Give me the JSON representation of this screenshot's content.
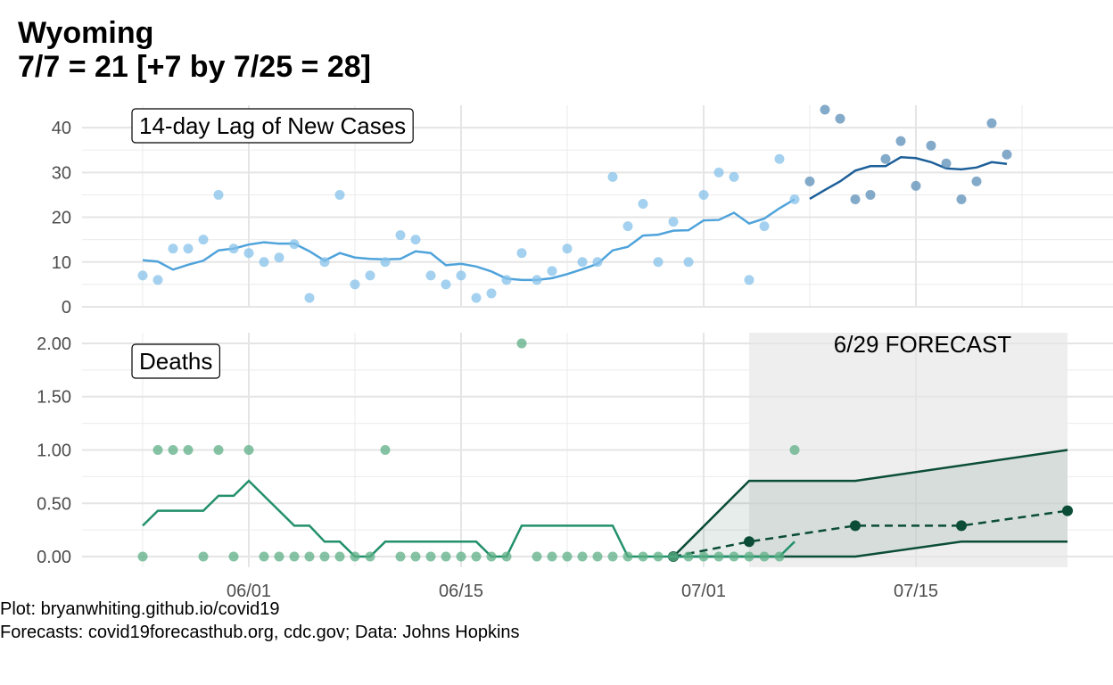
{
  "title_line1": "Wyoming",
  "title_line2": "7/7 = 21 [+7 by 7/25 = 28]",
  "caption_line1": "Plot: bryanwhiting.github.io/covid19",
  "caption_line2": "Forecasts: covid19forecasthub.org, cdc.gov; Data: Johns Hopkins",
  "colors": {
    "cases_point": "#85C1E9",
    "cases_point_recent": "#5B8DB8",
    "cases_line": "#4FA3DB",
    "cases_line_recent": "#1D5F99",
    "deaths_point": "#5CAF86",
    "deaths_line": "#22906A",
    "forecast": "#0B4D36",
    "forecast_band": "#D9D9D9",
    "grid": "#EBEBEB"
  },
  "chart_data": [
    {
      "type": "scatter",
      "panel": "cases",
      "label": "14-day Lag of New Cases",
      "xlim": [
        "2020-05-21",
        "2020-07-28"
      ],
      "ylim": [
        0,
        45
      ],
      "yticks": [
        0,
        10,
        20,
        30,
        40
      ],
      "xticks": [
        {
          "date": "2020-06-01",
          "label": "06/01"
        },
        {
          "date": "2020-06-15",
          "label": "06/15"
        },
        {
          "date": "2020-07-01",
          "label": "07/01"
        },
        {
          "date": "2020-07-15",
          "label": "07/15"
        }
      ],
      "grid": true,
      "recent_from": "2020-07-08",
      "points": [
        {
          "x": "2020-05-25",
          "y": 7
        },
        {
          "x": "2020-05-26",
          "y": 6
        },
        {
          "x": "2020-05-27",
          "y": 13
        },
        {
          "x": "2020-05-28",
          "y": 13
        },
        {
          "x": "2020-05-29",
          "y": 15
        },
        {
          "x": "2020-05-30",
          "y": 25
        },
        {
          "x": "2020-05-31",
          "y": 13
        },
        {
          "x": "2020-06-01",
          "y": 12
        },
        {
          "x": "2020-06-02",
          "y": 10
        },
        {
          "x": "2020-06-03",
          "y": 11
        },
        {
          "x": "2020-06-04",
          "y": 14
        },
        {
          "x": "2020-06-05",
          "y": 2
        },
        {
          "x": "2020-06-06",
          "y": 10
        },
        {
          "x": "2020-06-07",
          "y": 25
        },
        {
          "x": "2020-06-08",
          "y": 5
        },
        {
          "x": "2020-06-09",
          "y": 7
        },
        {
          "x": "2020-06-10",
          "y": 10
        },
        {
          "x": "2020-06-11",
          "y": 16
        },
        {
          "x": "2020-06-12",
          "y": 15
        },
        {
          "x": "2020-06-13",
          "y": 7
        },
        {
          "x": "2020-06-14",
          "y": 5
        },
        {
          "x": "2020-06-15",
          "y": 7
        },
        {
          "x": "2020-06-16",
          "y": 2
        },
        {
          "x": "2020-06-17",
          "y": 3
        },
        {
          "x": "2020-06-18",
          "y": 6
        },
        {
          "x": "2020-06-19",
          "y": 12
        },
        {
          "x": "2020-06-20",
          "y": 6
        },
        {
          "x": "2020-06-21",
          "y": 8
        },
        {
          "x": "2020-06-22",
          "y": 13
        },
        {
          "x": "2020-06-23",
          "y": 10
        },
        {
          "x": "2020-06-24",
          "y": 10
        },
        {
          "x": "2020-06-25",
          "y": 29
        },
        {
          "x": "2020-06-26",
          "y": 18
        },
        {
          "x": "2020-06-27",
          "y": 23
        },
        {
          "x": "2020-06-28",
          "y": 10
        },
        {
          "x": "2020-06-29",
          "y": 19
        },
        {
          "x": "2020-06-30",
          "y": 10
        },
        {
          "x": "2020-07-01",
          "y": 25
        },
        {
          "x": "2020-07-02",
          "y": 30
        },
        {
          "x": "2020-07-03",
          "y": 29
        },
        {
          "x": "2020-07-04",
          "y": 6
        },
        {
          "x": "2020-07-05",
          "y": 18
        },
        {
          "x": "2020-07-06",
          "y": 33
        },
        {
          "x": "2020-07-07",
          "y": 24
        },
        {
          "x": "2020-07-08",
          "y": 28
        },
        {
          "x": "2020-07-09",
          "y": 44
        },
        {
          "x": "2020-07-10",
          "y": 42
        },
        {
          "x": "2020-07-11",
          "y": 24
        },
        {
          "x": "2020-07-12",
          "y": 25
        },
        {
          "x": "2020-07-13",
          "y": 33
        },
        {
          "x": "2020-07-14",
          "y": 37
        },
        {
          "x": "2020-07-15",
          "y": 27
        },
        {
          "x": "2020-07-16",
          "y": 36
        },
        {
          "x": "2020-07-17",
          "y": 32
        },
        {
          "x": "2020-07-18",
          "y": 24
        },
        {
          "x": "2020-07-19",
          "y": 28
        },
        {
          "x": "2020-07-20",
          "y": 41
        },
        {
          "x": "2020-07-21",
          "y": 34
        }
      ],
      "rolling": [
        {
          "x": "2020-05-25",
          "y": 10.4
        },
        {
          "x": "2020-05-26",
          "y": 10.1
        },
        {
          "x": "2020-05-27",
          "y": 8.3
        },
        {
          "x": "2020-05-28",
          "y": 9.4
        },
        {
          "x": "2020-05-29",
          "y": 10.3
        },
        {
          "x": "2020-05-30",
          "y": 12.6
        },
        {
          "x": "2020-05-31",
          "y": 13.0
        },
        {
          "x": "2020-06-01",
          "y": 13.9
        },
        {
          "x": "2020-06-02",
          "y": 14.4
        },
        {
          "x": "2020-06-03",
          "y": 14.1
        },
        {
          "x": "2020-06-04",
          "y": 14.1
        },
        {
          "x": "2020-06-05",
          "y": 12.4
        },
        {
          "x": "2020-06-06",
          "y": 10.3
        },
        {
          "x": "2020-06-07",
          "y": 12.0
        },
        {
          "x": "2020-06-08",
          "y": 11.0
        },
        {
          "x": "2020-06-09",
          "y": 10.7
        },
        {
          "x": "2020-06-10",
          "y": 10.6
        },
        {
          "x": "2020-06-11",
          "y": 10.7
        },
        {
          "x": "2020-06-12",
          "y": 12.4
        },
        {
          "x": "2020-06-13",
          "y": 12.0
        },
        {
          "x": "2020-06-14",
          "y": 9.3
        },
        {
          "x": "2020-06-15",
          "y": 9.6
        },
        {
          "x": "2020-06-16",
          "y": 9.0
        },
        {
          "x": "2020-06-17",
          "y": 7.9
        },
        {
          "x": "2020-06-18",
          "y": 6.3
        },
        {
          "x": "2020-06-19",
          "y": 6.0
        },
        {
          "x": "2020-06-20",
          "y": 6.0
        },
        {
          "x": "2020-06-21",
          "y": 6.4
        },
        {
          "x": "2020-06-22",
          "y": 7.3
        },
        {
          "x": "2020-06-23",
          "y": 8.4
        },
        {
          "x": "2020-06-24",
          "y": 9.6
        },
        {
          "x": "2020-06-25",
          "y": 12.6
        },
        {
          "x": "2020-06-26",
          "y": 13.4
        },
        {
          "x": "2020-06-27",
          "y": 15.9
        },
        {
          "x": "2020-06-28",
          "y": 16.1
        },
        {
          "x": "2020-06-29",
          "y": 17.0
        },
        {
          "x": "2020-06-30",
          "y": 17.1
        },
        {
          "x": "2020-07-01",
          "y": 19.3
        },
        {
          "x": "2020-07-02",
          "y": 19.4
        },
        {
          "x": "2020-07-03",
          "y": 21.0
        },
        {
          "x": "2020-07-04",
          "y": 18.6
        },
        {
          "x": "2020-07-05",
          "y": 19.7
        },
        {
          "x": "2020-07-06",
          "y": 22.0
        },
        {
          "x": "2020-07-07",
          "y": 24.0
        },
        {
          "x": "2020-07-08",
          "y": 24.1
        },
        {
          "x": "2020-07-09",
          "y": 26.1
        },
        {
          "x": "2020-07-10",
          "y": 28.0
        },
        {
          "x": "2020-07-11",
          "y": 30.4
        },
        {
          "x": "2020-07-12",
          "y": 31.4
        },
        {
          "x": "2020-07-13",
          "y": 31.4
        },
        {
          "x": "2020-07-14",
          "y": 33.4
        },
        {
          "x": "2020-07-15",
          "y": 33.2
        },
        {
          "x": "2020-07-16",
          "y": 32.3
        },
        {
          "x": "2020-07-17",
          "y": 30.9
        },
        {
          "x": "2020-07-18",
          "y": 30.7
        },
        {
          "x": "2020-07-19",
          "y": 31.1
        },
        {
          "x": "2020-07-20",
          "y": 32.3
        },
        {
          "x": "2020-07-21",
          "y": 31.9
        }
      ]
    },
    {
      "type": "scatter",
      "panel": "deaths",
      "label": "Deaths",
      "xlim": [
        "2020-05-21",
        "2020-07-28"
      ],
      "ylim": [
        -0.1,
        2.1
      ],
      "yticks": [
        0,
        0.5,
        1,
        1.5,
        2
      ],
      "ytick_labels": [
        "0.00",
        "0.50",
        "1.00",
        "1.50",
        "2.00"
      ],
      "xticks": [
        {
          "date": "2020-06-01",
          "label": "06/01"
        },
        {
          "date": "2020-06-15",
          "label": "06/15"
        },
        {
          "date": "2020-07-01",
          "label": "07/01"
        },
        {
          "date": "2020-07-15",
          "label": "07/15"
        }
      ],
      "grid": true,
      "points": [
        {
          "x": "2020-05-25",
          "y": 0
        },
        {
          "x": "2020-05-26",
          "y": 1
        },
        {
          "x": "2020-05-27",
          "y": 1
        },
        {
          "x": "2020-05-28",
          "y": 1
        },
        {
          "x": "2020-05-29",
          "y": 0
        },
        {
          "x": "2020-05-30",
          "y": 1
        },
        {
          "x": "2020-05-31",
          "y": 0
        },
        {
          "x": "2020-06-01",
          "y": 1
        },
        {
          "x": "2020-06-02",
          "y": 0
        },
        {
          "x": "2020-06-03",
          "y": 0
        },
        {
          "x": "2020-06-04",
          "y": 0
        },
        {
          "x": "2020-06-05",
          "y": 0
        },
        {
          "x": "2020-06-06",
          "y": 0
        },
        {
          "x": "2020-06-07",
          "y": 0
        },
        {
          "x": "2020-06-08",
          "y": 0
        },
        {
          "x": "2020-06-09",
          "y": 0
        },
        {
          "x": "2020-06-10",
          "y": 1
        },
        {
          "x": "2020-06-11",
          "y": 0
        },
        {
          "x": "2020-06-12",
          "y": 0
        },
        {
          "x": "2020-06-13",
          "y": 0
        },
        {
          "x": "2020-06-14",
          "y": 0
        },
        {
          "x": "2020-06-15",
          "y": 0
        },
        {
          "x": "2020-06-16",
          "y": 0
        },
        {
          "x": "2020-06-17",
          "y": 0
        },
        {
          "x": "2020-06-18",
          "y": 0
        },
        {
          "x": "2020-06-19",
          "y": 2
        },
        {
          "x": "2020-06-20",
          "y": 0
        },
        {
          "x": "2020-06-21",
          "y": 0
        },
        {
          "x": "2020-06-22",
          "y": 0
        },
        {
          "x": "2020-06-23",
          "y": 0
        },
        {
          "x": "2020-06-24",
          "y": 0
        },
        {
          "x": "2020-06-25",
          "y": 0
        },
        {
          "x": "2020-06-26",
          "y": 0
        },
        {
          "x": "2020-06-27",
          "y": 0
        },
        {
          "x": "2020-06-28",
          "y": 0
        },
        {
          "x": "2020-06-29",
          "y": 0
        },
        {
          "x": "2020-06-30",
          "y": 0
        },
        {
          "x": "2020-07-01",
          "y": 0
        },
        {
          "x": "2020-07-02",
          "y": 0
        },
        {
          "x": "2020-07-03",
          "y": 0
        },
        {
          "x": "2020-07-04",
          "y": 0
        },
        {
          "x": "2020-07-05",
          "y": 0
        },
        {
          "x": "2020-07-06",
          "y": 0
        },
        {
          "x": "2020-07-07",
          "y": 1
        }
      ],
      "rolling": [
        {
          "x": "2020-05-25",
          "y": 0.29
        },
        {
          "x": "2020-05-26",
          "y": 0.43
        },
        {
          "x": "2020-05-27",
          "y": 0.43
        },
        {
          "x": "2020-05-28",
          "y": 0.43
        },
        {
          "x": "2020-05-29",
          "y": 0.43
        },
        {
          "x": "2020-05-30",
          "y": 0.57
        },
        {
          "x": "2020-05-31",
          "y": 0.57
        },
        {
          "x": "2020-06-01",
          "y": 0.71
        },
        {
          "x": "2020-06-02",
          "y": 0.57
        },
        {
          "x": "2020-06-03",
          "y": 0.43
        },
        {
          "x": "2020-06-04",
          "y": 0.29
        },
        {
          "x": "2020-06-05",
          "y": 0.29
        },
        {
          "x": "2020-06-06",
          "y": 0.14
        },
        {
          "x": "2020-06-07",
          "y": 0.14
        },
        {
          "x": "2020-06-08",
          "y": 0
        },
        {
          "x": "2020-06-09",
          "y": 0
        },
        {
          "x": "2020-06-10",
          "y": 0.14
        },
        {
          "x": "2020-06-11",
          "y": 0.14
        },
        {
          "x": "2020-06-12",
          "y": 0.14
        },
        {
          "x": "2020-06-13",
          "y": 0.14
        },
        {
          "x": "2020-06-14",
          "y": 0.14
        },
        {
          "x": "2020-06-15",
          "y": 0.14
        },
        {
          "x": "2020-06-16",
          "y": 0.14
        },
        {
          "x": "2020-06-17",
          "y": 0
        },
        {
          "x": "2020-06-18",
          "y": 0
        },
        {
          "x": "2020-06-19",
          "y": 0.29
        },
        {
          "x": "2020-06-20",
          "y": 0.29
        },
        {
          "x": "2020-06-21",
          "y": 0.29
        },
        {
          "x": "2020-06-22",
          "y": 0.29
        },
        {
          "x": "2020-06-23",
          "y": 0.29
        },
        {
          "x": "2020-06-24",
          "y": 0.29
        },
        {
          "x": "2020-06-25",
          "y": 0.29
        },
        {
          "x": "2020-06-26",
          "y": 0
        },
        {
          "x": "2020-06-27",
          "y": 0
        },
        {
          "x": "2020-06-28",
          "y": 0
        },
        {
          "x": "2020-06-29",
          "y": 0
        },
        {
          "x": "2020-06-30",
          "y": 0
        },
        {
          "x": "2020-07-01",
          "y": 0
        },
        {
          "x": "2020-07-02",
          "y": 0
        },
        {
          "x": "2020-07-03",
          "y": 0
        },
        {
          "x": "2020-07-04",
          "y": 0
        },
        {
          "x": "2020-07-05",
          "y": 0
        },
        {
          "x": "2020-07-06",
          "y": 0
        },
        {
          "x": "2020-07-07",
          "y": 0.14
        }
      ],
      "forecast": {
        "label": "6/29 FORECAST",
        "shade_range": [
          "2020-07-04",
          "2020-07-25"
        ],
        "median": [
          {
            "x": "2020-06-29",
            "y": 0
          },
          {
            "x": "2020-07-04",
            "y": 0.14
          },
          {
            "x": "2020-07-11",
            "y": 0.29
          },
          {
            "x": "2020-07-18",
            "y": 0.29
          },
          {
            "x": "2020-07-25",
            "y": 0.43
          }
        ],
        "upper": [
          {
            "x": "2020-06-29",
            "y": 0
          },
          {
            "x": "2020-07-04",
            "y": 0.71
          },
          {
            "x": "2020-07-11",
            "y": 0.71
          },
          {
            "x": "2020-07-25",
            "y": 1
          }
        ],
        "lower": [
          {
            "x": "2020-06-29",
            "y": 0
          },
          {
            "x": "2020-07-11",
            "y": 0
          },
          {
            "x": "2020-07-18",
            "y": 0.14
          },
          {
            "x": "2020-07-25",
            "y": 0.14
          }
        ]
      }
    }
  ]
}
